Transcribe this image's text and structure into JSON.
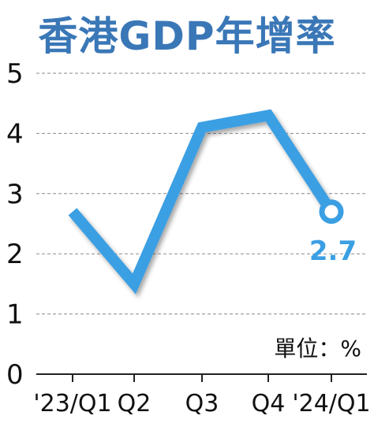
{
  "chart_data": {
    "type": "line",
    "title": "香港GDP年增率",
    "categories": [
      "'23/Q1",
      "Q2",
      "Q3",
      "Q4",
      "'24/Q1"
    ],
    "series": [
      {
        "values": [
          2.7,
          1.5,
          4.1,
          4.3,
          2.7
        ]
      }
    ],
    "ylim": [
      0,
      5
    ],
    "yticks": [
      "0",
      "1",
      "2",
      "3",
      "4",
      "5"
    ],
    "grid": true,
    "last_value_label": "2.7",
    "unit_label": "單位：%",
    "line_color": "#3b9fe3",
    "title_color": "#3a77b7",
    "value_label_color": "#3b9fe3"
  }
}
